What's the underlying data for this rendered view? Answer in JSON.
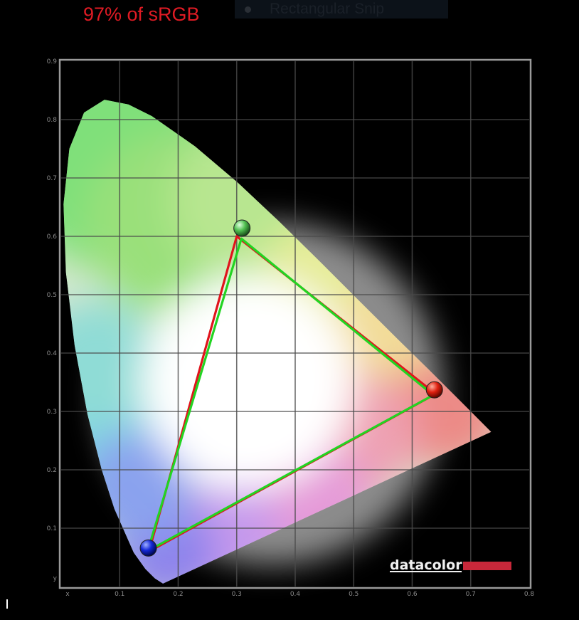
{
  "headline": "97% of sRGB",
  "snip_tool": {
    "label": "Rectangular Snip"
  },
  "colors": {
    "headline": "#e01b24",
    "reference_triangle": "#e0141c",
    "measured_triangle": "#22d422",
    "grid": "#4a4a4a",
    "frame": "#9a9a9a",
    "logo_bar": "#c8283a"
  },
  "chart_data": {
    "type": "scatter",
    "title": "",
    "xlabel": "x",
    "ylabel": "y",
    "xlim": [
      0,
      0.8
    ],
    "ylim": [
      0,
      0.9
    ],
    "grid": true,
    "x_ticks": [
      "x",
      "0.1",
      "0.2",
      "0.3",
      "0.4",
      "0.5",
      "0.6",
      "0.7",
      "0.8"
    ],
    "y_ticks": [
      "y",
      "0.1",
      "0.2",
      "0.3",
      "0.4",
      "0.5",
      "0.6",
      "0.7",
      "0.8",
      "0.9"
    ],
    "spectral_locus": [
      [
        0.174,
        0.005
      ],
      [
        0.16,
        0.014
      ],
      [
        0.144,
        0.03
      ],
      [
        0.124,
        0.058
      ],
      [
        0.091,
        0.133
      ],
      [
        0.069,
        0.201
      ],
      [
        0.045,
        0.295
      ],
      [
        0.023,
        0.413
      ],
      [
        0.008,
        0.538
      ],
      [
        0.004,
        0.655
      ],
      [
        0.014,
        0.75
      ],
      [
        0.039,
        0.812
      ],
      [
        0.074,
        0.834
      ],
      [
        0.115,
        0.826
      ],
      [
        0.155,
        0.806
      ],
      [
        0.229,
        0.754
      ],
      [
        0.302,
        0.692
      ],
      [
        0.373,
        0.625
      ],
      [
        0.444,
        0.555
      ],
      [
        0.512,
        0.487
      ],
      [
        0.575,
        0.424
      ],
      [
        0.627,
        0.373
      ],
      [
        0.666,
        0.334
      ],
      [
        0.692,
        0.308
      ],
      [
        0.735,
        0.265
      ]
    ],
    "series": [
      {
        "name": "",
        "role": "reference",
        "color": "#e0141c",
        "points": [
          {
            "x": 0.64,
            "y": 0.33
          },
          {
            "x": 0.3,
            "y": 0.6
          },
          {
            "x": 0.15,
            "y": 0.06
          }
        ]
      },
      {
        "name": "",
        "role": "measured",
        "color": "#22d422",
        "points": [
          {
            "x": 0.636,
            "y": 0.328
          },
          {
            "x": 0.308,
            "y": 0.596
          },
          {
            "x": 0.148,
            "y": 0.061
          }
        ]
      }
    ],
    "primaries": [
      {
        "name": "red",
        "x": 0.638,
        "y": 0.337,
        "color": "#e02010"
      },
      {
        "name": "green",
        "x": 0.309,
        "y": 0.614,
        "color": "#40c040"
      },
      {
        "name": "blue",
        "x": 0.149,
        "y": 0.066,
        "color": "#1428d8"
      }
    ]
  },
  "logo": {
    "text": "datacolor"
  }
}
